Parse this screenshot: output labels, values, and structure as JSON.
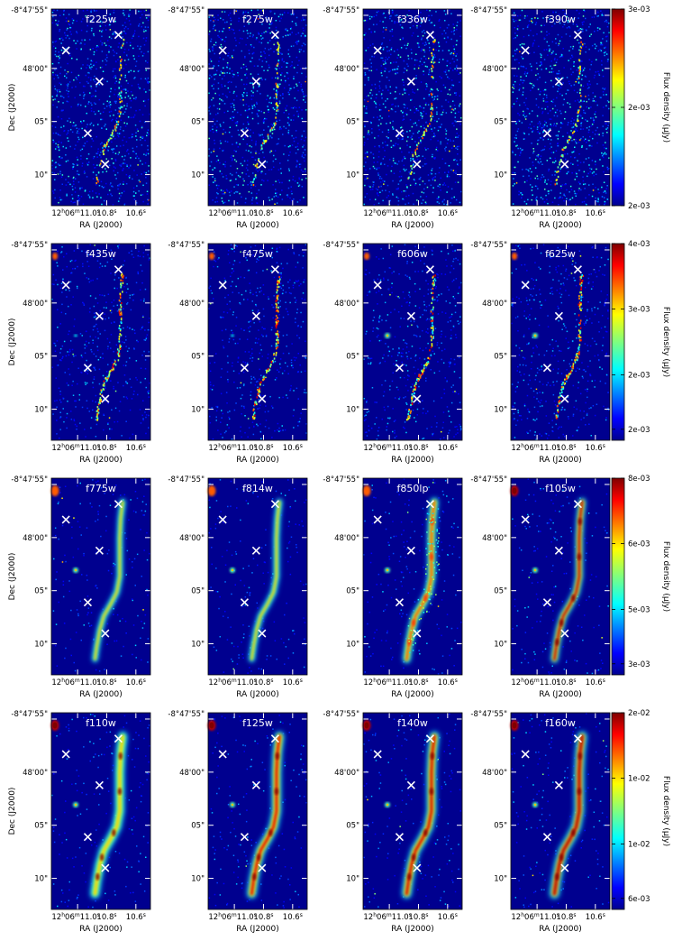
{
  "figure": {
    "x_axis_label": "RA (J2000)",
    "y_axis_label": "Dec (J2000)",
    "colorbar_label": "Flux density (μJy)",
    "colormap": "jet"
  },
  "chart_data": {
    "type": "heatmap",
    "description_note": "",
    "ra_ticks": [
      {
        "label_main": "12",
        "label_h": "h",
        "label_mid": "06",
        "label_m": "m",
        "label_tail": "11.0",
        "label_s": "s",
        "ra_sec": 11.0
      },
      {
        "label_main": "10.8",
        "label_s": "s",
        "ra_sec": 10.8
      },
      {
        "label_main": "10.6",
        "label_s": "s",
        "ra_sec": 10.6
      }
    ],
    "dec_ticks": [
      "-8°47'55\"",
      "48'00\"",
      "05\"",
      "10\""
    ],
    "crosses": [
      {
        "ra_sec": 10.72,
        "dec_arcsec": 56.5
      },
      {
        "ra_sec": 11.08,
        "dec_arcsec": 58.0
      },
      {
        "ra_sec": 10.85,
        "dec_arcsec": 61.0
      },
      {
        "ra_sec": 10.93,
        "dec_arcsec": 66.0
      },
      {
        "ra_sec": 10.81,
        "dec_arcsec": 69.0
      }
    ],
    "panels": [
      {
        "filter": "f225w",
        "row": 0,
        "col": 0,
        "stage": 0
      },
      {
        "filter": "f275w",
        "row": 0,
        "col": 1,
        "stage": 0
      },
      {
        "filter": "f336w",
        "row": 0,
        "col": 2,
        "stage": 1
      },
      {
        "filter": "f390w",
        "row": 0,
        "col": 3,
        "stage": 1
      },
      {
        "filter": "f435w",
        "row": 1,
        "col": 0,
        "stage": 2
      },
      {
        "filter": "f475w",
        "row": 1,
        "col": 1,
        "stage": 2
      },
      {
        "filter": "f606w",
        "row": 1,
        "col": 2,
        "stage": 3
      },
      {
        "filter": "f625w",
        "row": 1,
        "col": 3,
        "stage": 3
      },
      {
        "filter": "f775w",
        "row": 2,
        "col": 0,
        "stage": 4
      },
      {
        "filter": "f814w",
        "row": 2,
        "col": 1,
        "stage": 4
      },
      {
        "filter": "f850lp",
        "row": 2,
        "col": 2,
        "stage": 5
      },
      {
        "filter": "f105w",
        "row": 2,
        "col": 3,
        "stage": 6
      },
      {
        "filter": "f110w",
        "row": 3,
        "col": 0,
        "stage": 7
      },
      {
        "filter": "f125w",
        "row": 3,
        "col": 1,
        "stage": 8
      },
      {
        "filter": "f140w",
        "row": 3,
        "col": 2,
        "stage": 9
      },
      {
        "filter": "f160w",
        "row": 3,
        "col": 3,
        "stage": 10
      }
    ],
    "colorbars": [
      {
        "row": 0,
        "ticks": [
          "3e-03",
          "2e-03",
          "2e-03"
        ]
      },
      {
        "row": 1,
        "ticks": [
          "4e-03",
          "3e-03",
          "2e-03",
          "2e-03"
        ]
      },
      {
        "row": 2,
        "ticks": [
          "8e-03",
          "6e-03",
          "5e-03",
          "3e-03"
        ]
      },
      {
        "row": 3,
        "ticks": [
          "2e-02",
          "1e-02",
          "1e-02",
          "6e-03"
        ]
      }
    ]
  }
}
